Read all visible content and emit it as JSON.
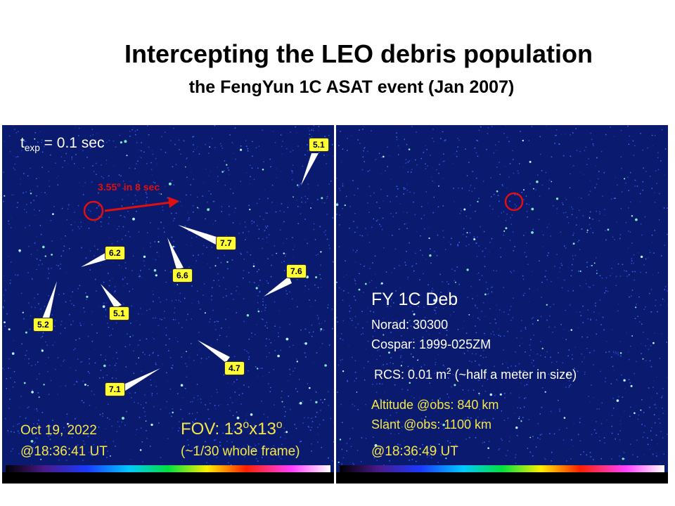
{
  "title": "Intercepting the LEO debris population",
  "subtitle": "the FengYun 1C   ASAT event (Jan 2007)",
  "left": {
    "texp_prefix": "t",
    "texp_sub": "exp",
    "texp_value": " = 0.1 sec",
    "motion_label": "3.55° in 8 sec",
    "magnitudes": [
      "5.1",
      "7.7",
      "6.2",
      "6.6",
      "7.6",
      "5.1",
      "5.2",
      "4.7",
      "7.1"
    ],
    "date": "Oct 19, 2022",
    "time": "@18:36:41 UT",
    "fov_prefix": "FOV: 13",
    "fov_sup1": "o",
    "fov_mid": "x13",
    "fov_sup2": "o",
    "fov_note": "(~1/30 whole frame)"
  },
  "right": {
    "object_name": "FY 1C Deb",
    "norad": "Norad: 30300",
    "cospar": "Cospar: 1999-025ZM",
    "rcs_prefix": "RCS: 0.01 m",
    "rcs_sup": "2",
    "rcs_suffix": " (~half a meter in size)",
    "altitude": "Altitude @obs: 840 km",
    "slant": "Slant @obs: 1100 km",
    "time": "@18:36:49 UT"
  },
  "colors": {
    "sky": "#0a1a6e",
    "label_fill": "#ffff33",
    "annotation_red": "#e01010",
    "caption_yellow": "#f5e64a"
  }
}
